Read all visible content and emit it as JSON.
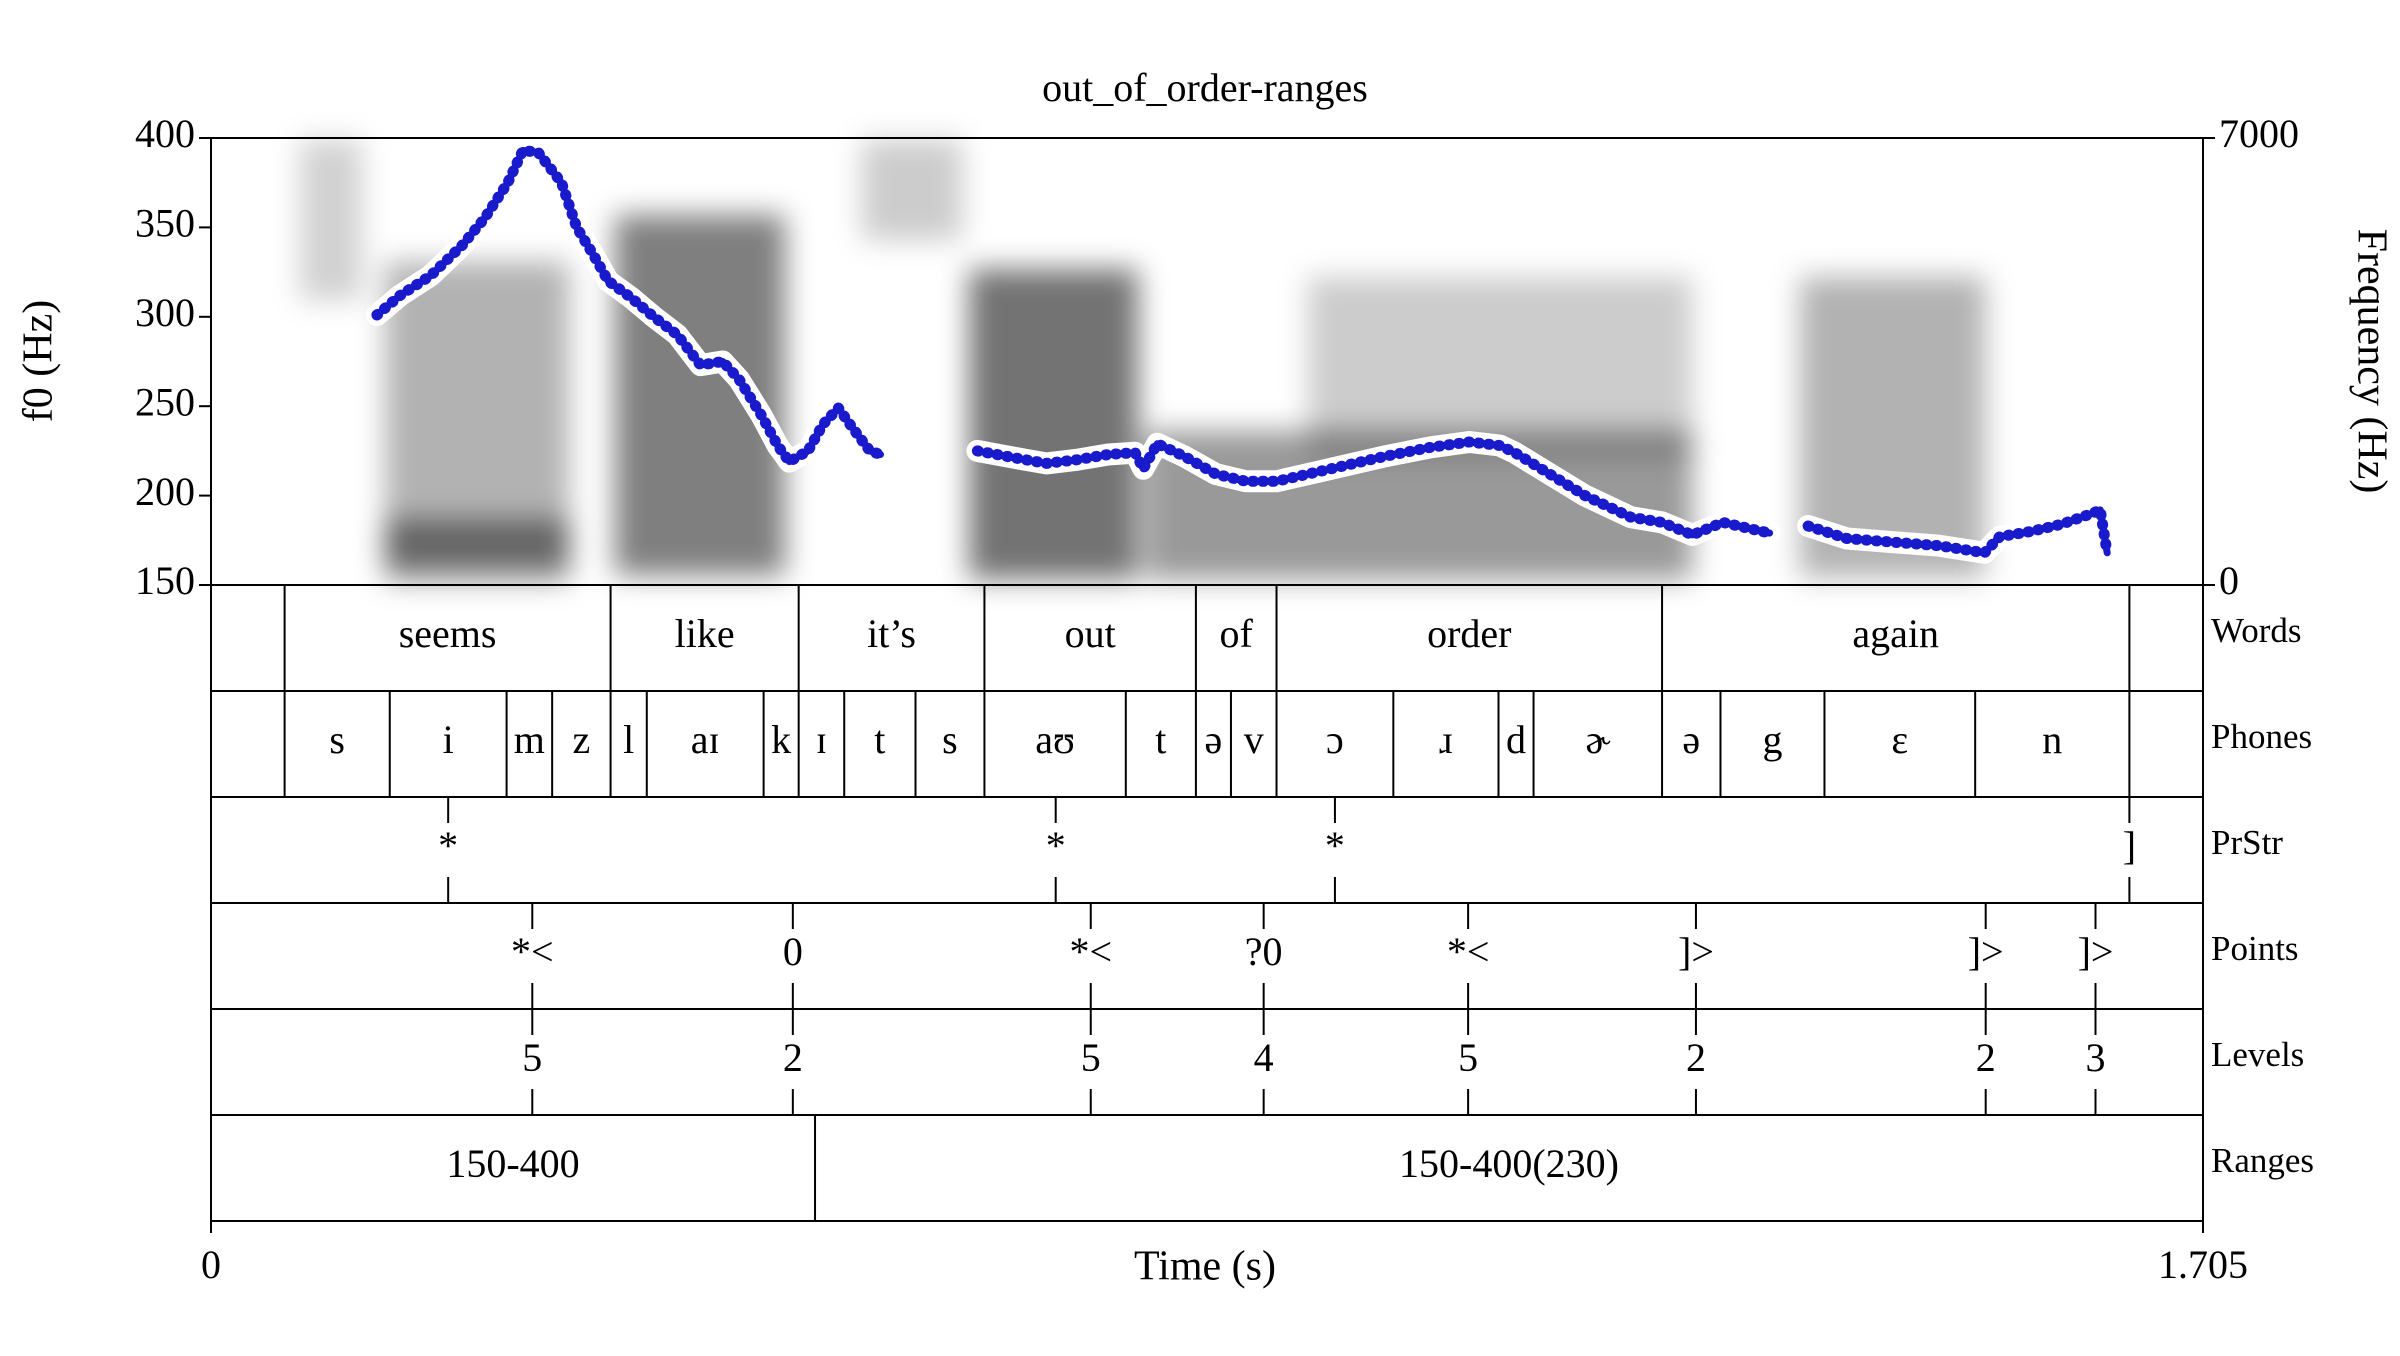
{
  "chart_data": {
    "type": "spectrogram",
    "title": "out_of_order-ranges",
    "xlabel": "Time (s)",
    "ylabel": "f0 (Hz)",
    "y2label": "Frequency (Hz)",
    "xlim": [
      0,
      1.705
    ],
    "xticks": [
      0,
      1.705
    ],
    "ylim": [
      150,
      400
    ],
    "yticks": [
      150,
      200,
      250,
      300,
      350,
      400
    ],
    "y2lim": [
      0,
      7000
    ],
    "y2ticks": [
      0,
      7000
    ],
    "series": [
      {
        "color": "#1a1acd",
        "x": [
          0.142,
          0.162,
          0.188,
          0.215,
          0.234,
          0.254,
          0.267,
          0.28,
          0.3,
          0.313,
          0.327,
          0.34,
          0.359,
          0.379,
          0.399,
          0.419,
          0.438,
          0.452,
          0.471,
          0.485,
          0.495,
          0.511,
          0.524,
          0.537,
          0.55,
          0.564,
          0.573,
          0.615,
          0.656,
          0.689,
          0.715,
          0.741,
          0.768,
          0.791,
          0.798,
          0.81,
          0.833,
          0.86,
          0.886,
          0.912,
          0.952,
          1.005,
          1.044,
          1.077,
          1.103,
          1.116,
          1.136,
          1.176,
          1.215,
          1.242,
          1.268,
          1.294,
          1.314,
          1.334,
          1.35,
          1.367,
          1.4,
          1.439,
          1.479,
          1.518,
          1.531,
          1.558,
          1.584,
          1.61,
          1.617,
          1.623
        ],
        "values": [
          301,
          312,
          323,
          340,
          355,
          375,
          393,
          392,
          375,
          350,
          335,
          320,
          311,
          300,
          290,
          273,
          275,
          265,
          245,
          228,
          219,
          225,
          240,
          249,
          237,
          225,
          223,
          null,
          225,
          221,
          218,
          220,
          223,
          224,
          215,
          229,
          222,
          212,
          208,
          208,
          214,
          222,
          227,
          230,
          228,
          224,
          216,
          200,
          188,
          185,
          178,
          185,
          182,
          179,
          null,
          183,
          176,
          174,
          172,
          168,
          177,
          180,
          184,
          190,
          192,
          168
        ]
      }
    ],
    "tiers": [
      {
        "name": "Words",
        "kind": "interval",
        "bounds": [
          0.063,
          0.342,
          0.503,
          0.662,
          0.843,
          0.912,
          1.242,
          1.642
        ],
        "labels": [
          null,
          "seems",
          "like",
          "it’s",
          "out",
          "of",
          "order",
          "again",
          null
        ]
      },
      {
        "name": "Phones",
        "kind": "interval",
        "bounds": [
          0.063,
          0.153,
          0.253,
          0.292,
          0.342,
          0.373,
          0.473,
          0.503,
          0.542,
          0.603,
          0.662,
          0.783,
          0.843,
          0.873,
          0.912,
          1.012,
          1.102,
          1.132,
          1.242,
          1.292,
          1.381,
          1.51,
          1.642
        ],
        "labels": [
          null,
          "s",
          "i",
          "m",
          "z",
          "l",
          "aɪ",
          "k",
          "ɪ",
          "t",
          "s",
          "aʊ",
          "t",
          "ə",
          "v",
          "ɔ",
          "ɹ",
          "d",
          "ɚ",
          "ə",
          "g",
          "ɛ",
          "n",
          null
        ]
      },
      {
        "name": "PrStr",
        "kind": "point",
        "times": [
          0.203,
          0.723,
          0.962,
          1.642
        ],
        "labels": [
          "*",
          "*",
          "*",
          "]"
        ]
      },
      {
        "name": "Points",
        "kind": "point",
        "times": [
          0.275,
          0.498,
          0.753,
          0.901,
          1.076,
          1.271,
          1.519,
          1.613
        ],
        "labels": [
          "*<",
          "0",
          "*<",
          "?0",
          "*<",
          "]>",
          "]>",
          "]>"
        ]
      },
      {
        "name": "Levels",
        "kind": "point",
        "times": [
          0.275,
          0.498,
          0.753,
          0.901,
          1.076,
          1.271,
          1.519,
          1.613
        ],
        "labels": [
          "5",
          "2",
          "5",
          "4",
          "5",
          "2",
          "2",
          "3"
        ]
      },
      {
        "name": "Ranges",
        "kind": "interval",
        "bounds": [
          0.517
        ],
        "labels": [
          "150-400",
          "150-400(230)"
        ]
      }
    ]
  }
}
